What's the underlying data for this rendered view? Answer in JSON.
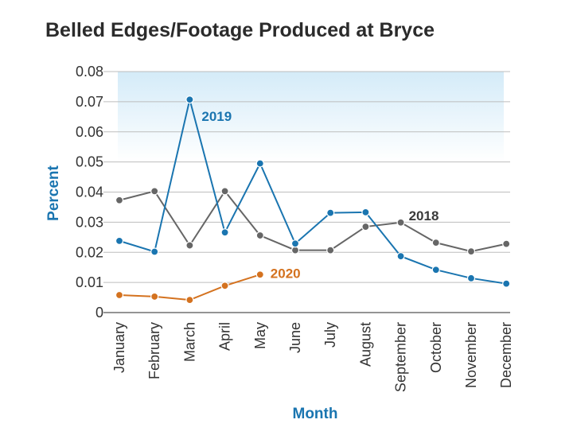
{
  "chart_data": {
    "type": "line",
    "title": "Belled Edges/Footage Produced at Bryce",
    "xlabel": "Month",
    "ylabel": "Percent",
    "categories": [
      "January",
      "February",
      "March",
      "April",
      "May",
      "June",
      "July",
      "August",
      "September",
      "October",
      "November",
      "December"
    ],
    "ylim": [
      0,
      0.08
    ],
    "yticks": [
      0,
      0.01,
      0.02,
      0.03,
      0.04,
      0.05,
      0.06,
      0.07,
      0.08
    ],
    "ytick_labels": [
      "0",
      "0.01",
      "0.02",
      "0.03",
      "0.04",
      "0.05",
      "0.06",
      "0.07",
      "0.08"
    ],
    "grid": true,
    "series": [
      {
        "name": "2018",
        "color": "#666666",
        "values": [
          0.0373,
          0.0403,
          0.0223,
          0.0403,
          0.0256,
          0.0207,
          0.0207,
          0.0285,
          0.0299,
          0.0232,
          0.0203,
          0.0228
        ]
      },
      {
        "name": "2019",
        "color": "#1a75b0",
        "values": [
          0.0238,
          0.0202,
          0.0707,
          0.0266,
          0.0495,
          0.0229,
          0.0331,
          0.0333,
          0.0187,
          0.0142,
          0.0114,
          0.0096
        ]
      },
      {
        "name": "2020",
        "color": "#d4721f",
        "values": [
          0.0058,
          0.0053,
          0.0042,
          0.0089,
          0.0126,
          null,
          null,
          null,
          null,
          null,
          null,
          null
        ]
      }
    ]
  }
}
